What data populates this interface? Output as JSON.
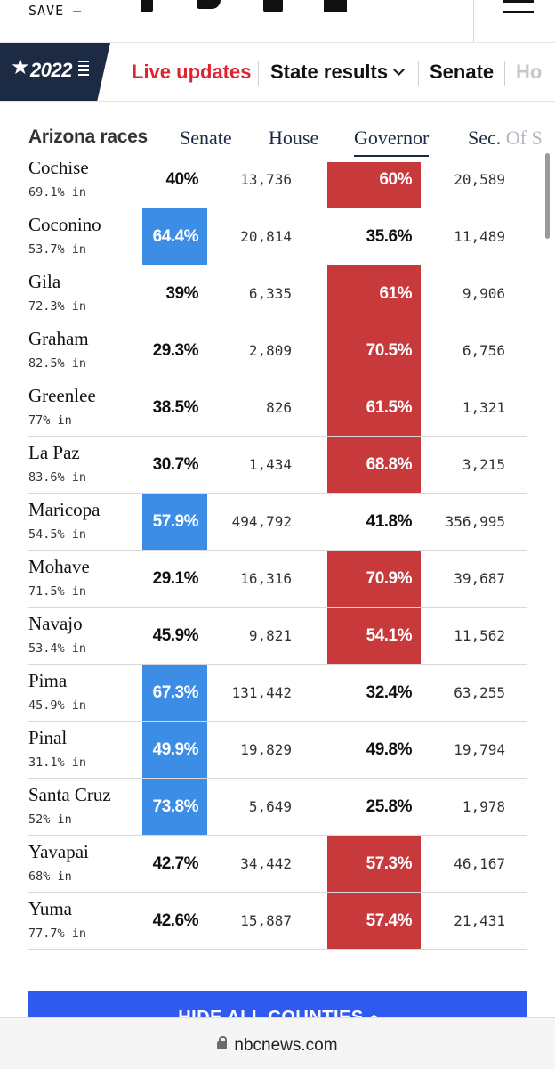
{
  "sharebar": {
    "save_label": "SAVE —"
  },
  "logo": {
    "year": "2022"
  },
  "nav": {
    "live_updates": "Live updates",
    "state_results": "State results",
    "senate": "Senate",
    "more": "Ho"
  },
  "race_tabs": {
    "label": "Arizona races",
    "tabs": [
      "Senate",
      "House",
      "Governor"
    ],
    "sec_visible": "Sec. ",
    "sec_faded": "Of S",
    "active": "Governor"
  },
  "colors": {
    "dem": "#3b8de6",
    "rep": "#c8393b",
    "button": "#3059f0",
    "live": "#e0242f"
  },
  "counties": [
    {
      "name": "Cochise",
      "reporting": "69.1% in",
      "dem_pct": "40%",
      "dem_votes": "13,736",
      "rep_pct": "60%",
      "rep_votes": "20,589",
      "winner": "rep"
    },
    {
      "name": "Coconino",
      "reporting": "53.7% in",
      "dem_pct": "64.4%",
      "dem_votes": "20,814",
      "rep_pct": "35.6%",
      "rep_votes": "11,489",
      "winner": "dem"
    },
    {
      "name": "Gila",
      "reporting": "72.3% in",
      "dem_pct": "39%",
      "dem_votes": "6,335",
      "rep_pct": "61%",
      "rep_votes": "9,906",
      "winner": "rep"
    },
    {
      "name": "Graham",
      "reporting": "82.5% in",
      "dem_pct": "29.3%",
      "dem_votes": "2,809",
      "rep_pct": "70.5%",
      "rep_votes": "6,756",
      "winner": "rep"
    },
    {
      "name": "Greenlee",
      "reporting": "77% in",
      "dem_pct": "38.5%",
      "dem_votes": "826",
      "rep_pct": "61.5%",
      "rep_votes": "1,321",
      "winner": "rep"
    },
    {
      "name": "La Paz",
      "reporting": "83.6% in",
      "dem_pct": "30.7%",
      "dem_votes": "1,434",
      "rep_pct": "68.8%",
      "rep_votes": "3,215",
      "winner": "rep"
    },
    {
      "name": "Maricopa",
      "reporting": "54.5% in",
      "dem_pct": "57.9%",
      "dem_votes": "494,792",
      "rep_pct": "41.8%",
      "rep_votes": "356,995",
      "winner": "dem"
    },
    {
      "name": "Mohave",
      "reporting": "71.5% in",
      "dem_pct": "29.1%",
      "dem_votes": "16,316",
      "rep_pct": "70.9%",
      "rep_votes": "39,687",
      "winner": "rep"
    },
    {
      "name": "Navajo",
      "reporting": "53.4% in",
      "dem_pct": "45.9%",
      "dem_votes": "9,821",
      "rep_pct": "54.1%",
      "rep_votes": "11,562",
      "winner": "rep"
    },
    {
      "name": "Pima",
      "reporting": "45.9% in",
      "dem_pct": "67.3%",
      "dem_votes": "131,442",
      "rep_pct": "32.4%",
      "rep_votes": "63,255",
      "winner": "dem"
    },
    {
      "name": "Pinal",
      "reporting": "31.1% in",
      "dem_pct": "49.9%",
      "dem_votes": "19,829",
      "rep_pct": "49.8%",
      "rep_votes": "19,794",
      "winner": "dem"
    },
    {
      "name": "Santa Cruz",
      "reporting": "52% in",
      "dem_pct": "73.8%",
      "dem_votes": "5,649",
      "rep_pct": "25.8%",
      "rep_votes": "1,978",
      "winner": "dem"
    },
    {
      "name": "Yavapai",
      "reporting": "68% in",
      "dem_pct": "42.7%",
      "dem_votes": "34,442",
      "rep_pct": "57.3%",
      "rep_votes": "46,167",
      "winner": "rep"
    },
    {
      "name": "Yuma",
      "reporting": "77.7% in",
      "dem_pct": "42.6%",
      "dem_votes": "15,887",
      "rep_pct": "57.4%",
      "rep_votes": "21,431",
      "winner": "rep"
    }
  ],
  "hide_button": {
    "label": "HIDE ALL COUNTIES"
  },
  "browser": {
    "url": "nbcnews.com"
  }
}
